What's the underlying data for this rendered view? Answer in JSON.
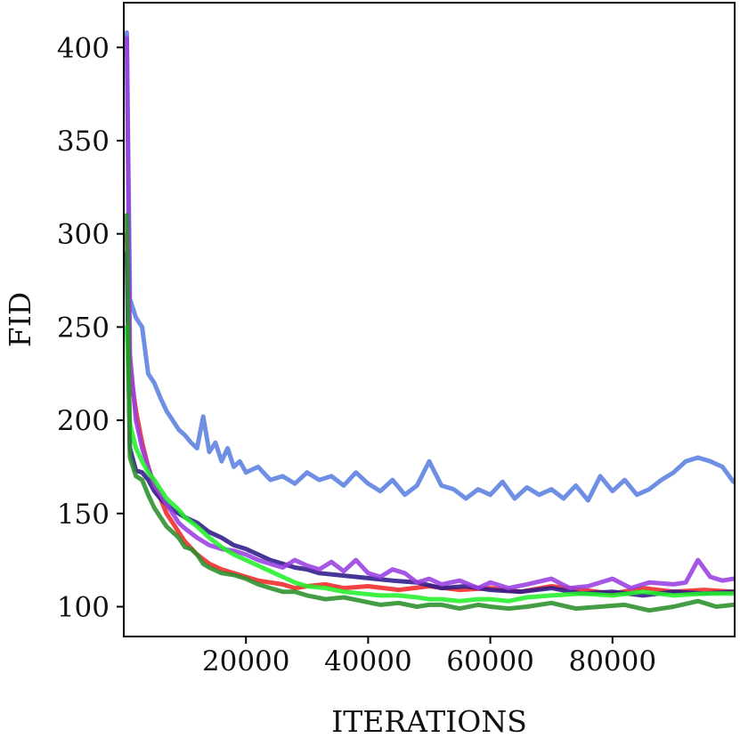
{
  "chart_data": {
    "type": "line",
    "title": "",
    "xlabel": "ITERATIONS",
    "ylabel": "FID",
    "xlim": [
      0,
      100000
    ],
    "ylim": [
      84,
      424
    ],
    "xticks": [
      {
        "value": 20000,
        "label": "20000"
      },
      {
        "value": 40000,
        "label": "40000"
      },
      {
        "value": 60000,
        "label": "60000"
      },
      {
        "value": 80000,
        "label": "80000"
      }
    ],
    "yticks": [
      {
        "value": 100,
        "label": "100"
      },
      {
        "value": 150,
        "label": "150"
      },
      {
        "value": 200,
        "label": "200"
      },
      {
        "value": 250,
        "label": "250"
      },
      {
        "value": 300,
        "label": "300"
      },
      {
        "value": 350,
        "label": "350"
      },
      {
        "value": 400,
        "label": "400"
      }
    ],
    "grid": false,
    "legend": "none",
    "series": [
      {
        "color": "#5b7fe0",
        "x": [
          500,
          1000,
          2000,
          3000,
          4000,
          5000,
          6000,
          7000,
          8000,
          9000,
          10000,
          11000,
          12000,
          13000,
          14000,
          15000,
          16000,
          17000,
          18000,
          19000,
          20000,
          22000,
          24000,
          26000,
          28000,
          30000,
          32000,
          34000,
          36000,
          38000,
          40000,
          42000,
          44000,
          46000,
          48000,
          50000,
          52000,
          54000,
          56000,
          58000,
          60000,
          62000,
          64000,
          66000,
          68000,
          70000,
          72000,
          74000,
          76000,
          78000,
          80000,
          82000,
          84000,
          86000,
          88000,
          90000,
          92000,
          94000,
          96000,
          98000,
          99800
        ],
        "y": [
          408,
          265,
          255,
          250,
          225,
          220,
          212,
          205,
          200,
          195,
          192,
          188,
          185,
          202,
          183,
          188,
          178,
          185,
          175,
          178,
          172,
          175,
          168,
          170,
          166,
          172,
          168,
          170,
          165,
          172,
          166,
          162,
          168,
          160,
          165,
          178,
          165,
          163,
          158,
          163,
          160,
          167,
          158,
          164,
          160,
          163,
          158,
          165,
          157,
          170,
          162,
          168,
          160,
          163,
          168,
          172,
          178,
          180,
          178,
          175,
          167
        ]
      },
      {
        "color": "#f02828",
        "x": [
          500,
          1000,
          2000,
          3000,
          4000,
          5000,
          6000,
          7000,
          8000,
          9000,
          10000,
          12000,
          14000,
          16000,
          18000,
          20000,
          22000,
          24000,
          26000,
          28000,
          30000,
          33000,
          36000,
          40000,
          45000,
          50000,
          55000,
          60000,
          65000,
          70000,
          75000,
          80000,
          85000,
          90000,
          95000,
          99800
        ],
        "y": [
          300,
          228,
          205,
          188,
          175,
          165,
          158,
          150,
          145,
          140,
          135,
          128,
          123,
          120,
          118,
          116,
          114,
          113,
          112,
          110,
          111,
          112,
          110,
          111,
          109,
          111,
          109,
          110,
          108,
          111,
          109,
          107,
          110,
          108,
          109,
          108
        ]
      },
      {
        "color": "#2e1a8a",
        "x": [
          500,
          1000,
          2000,
          3000,
          4000,
          5000,
          6000,
          7000,
          8000,
          10000,
          12000,
          14000,
          16000,
          18000,
          20000,
          22000,
          24000,
          26000,
          28000,
          30000,
          32000,
          35000,
          38000,
          41000,
          44000,
          48000,
          52000,
          56000,
          60000,
          65000,
          70000,
          75000,
          80000,
          85000,
          90000,
          95000,
          99800
        ],
        "y": [
          290,
          185,
          173,
          172,
          168,
          162,
          158,
          155,
          152,
          148,
          145,
          140,
          137,
          133,
          131,
          128,
          125,
          123,
          121,
          120,
          118,
          117,
          116,
          115,
          114,
          113,
          110,
          111,
          109,
          108,
          110,
          107,
          108,
          106,
          108,
          107,
          108
        ]
      },
      {
        "color": "#9a3fe0",
        "x": [
          500,
          1000,
          2000,
          3000,
          4000,
          5000,
          6000,
          7000,
          8000,
          9000,
          10000,
          12000,
          14000,
          16000,
          18000,
          20000,
          22000,
          24000,
          26000,
          28000,
          30000,
          32000,
          34000,
          36000,
          38000,
          40000,
          42000,
          44000,
          46000,
          48000,
          50000,
          52000,
          55000,
          58000,
          60000,
          63000,
          66000,
          70000,
          73000,
          76000,
          80000,
          83000,
          86000,
          90000,
          92000,
          94000,
          96000,
          98000,
          99800
        ],
        "y": [
          405,
          235,
          200,
          185,
          175,
          165,
          160,
          155,
          150,
          145,
          142,
          137,
          133,
          131,
          130,
          128,
          125,
          123,
          121,
          125,
          122,
          120,
          124,
          119,
          125,
          118,
          116,
          120,
          118,
          113,
          115,
          112,
          114,
          110,
          113,
          110,
          112,
          115,
          110,
          111,
          115,
          110,
          113,
          112,
          113,
          125,
          116,
          114,
          115
        ]
      },
      {
        "color": "#22f02a",
        "x": [
          500,
          1000,
          2000,
          3000,
          4000,
          5000,
          6000,
          7000,
          8000,
          9000,
          10000,
          12000,
          14000,
          16000,
          18000,
          20000,
          22000,
          24000,
          26000,
          28000,
          30000,
          33000,
          36000,
          39000,
          42000,
          45000,
          48000,
          50000,
          52000,
          55000,
          58000,
          60000,
          63000,
          66000,
          70000,
          75000,
          80000,
          85000,
          90000,
          95000,
          99800
        ],
        "y": [
          250,
          198,
          185,
          178,
          172,
          168,
          163,
          158,
          155,
          152,
          148,
          143,
          137,
          132,
          128,
          125,
          122,
          119,
          116,
          113,
          111,
          110,
          108,
          107,
          106,
          106,
          105,
          104,
          104,
          103,
          104,
          104,
          103,
          105,
          106,
          107,
          106,
          108,
          106,
          107,
          107
        ]
      },
      {
        "color": "#2a8f2a",
        "x": [
          500,
          1000,
          2000,
          3000,
          4000,
          5000,
          6000,
          7000,
          8000,
          9000,
          10000,
          11000,
          12000,
          13000,
          14000,
          16000,
          18000,
          20000,
          22000,
          24000,
          26000,
          28000,
          30000,
          33000,
          36000,
          39000,
          42000,
          45000,
          48000,
          50000,
          52000,
          55000,
          58000,
          60000,
          63000,
          66000,
          70000,
          74000,
          78000,
          82000,
          86000,
          90000,
          94000,
          97000,
          99800
        ],
        "y": [
          310,
          180,
          170,
          168,
          160,
          153,
          148,
          143,
          140,
          137,
          132,
          131,
          128,
          123,
          121,
          118,
          117,
          115,
          112,
          110,
          108,
          108,
          106,
          104,
          105,
          103,
          101,
          102,
          100,
          101,
          101,
          99,
          101,
          100,
          99,
          100,
          102,
          99,
          100,
          101,
          98,
          100,
          103,
          100,
          101
        ]
      }
    ]
  }
}
